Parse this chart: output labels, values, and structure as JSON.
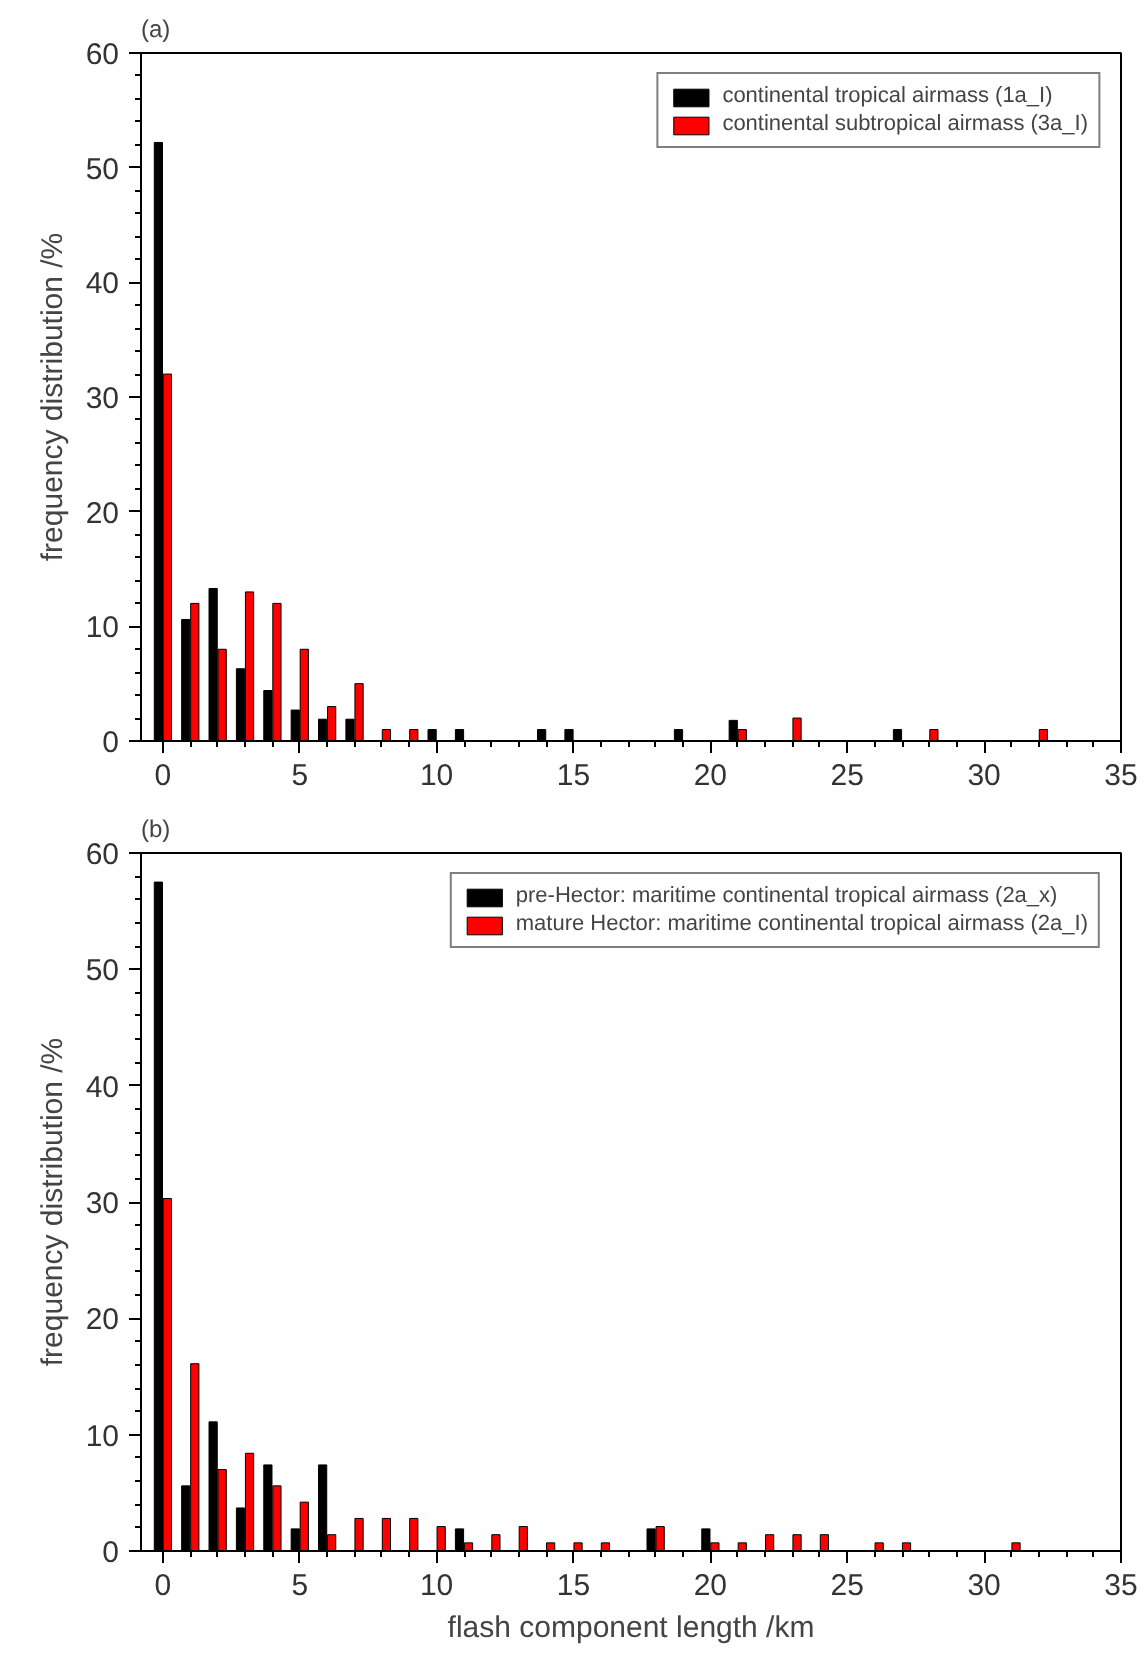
{
  "chart_data": [
    {
      "type": "bar",
      "title": "(a)",
      "ylabel": "frequency distribution /%",
      "x": [
        0,
        1,
        2,
        3,
        4,
        5,
        6,
        7,
        8,
        9,
        10,
        11,
        14,
        15,
        19,
        21,
        23,
        27,
        28,
        32
      ],
      "series": [
        {
          "name": "continental tropical airmass (1a_I)",
          "color": "#000000",
          "values": [
            52.2,
            10.6,
            13.3,
            6.3,
            4.4,
            2.7,
            1.9,
            1.9,
            null,
            null,
            1,
            1,
            1,
            1,
            1,
            1.8,
            null,
            1,
            null,
            null
          ]
        },
        {
          "name": "continental subtropical airmass (3a_I)",
          "color": "#ff0000",
          "values": [
            32,
            12,
            8,
            13,
            12,
            8,
            3,
            5,
            1,
            1,
            null,
            null,
            null,
            null,
            null,
            1,
            2,
            null,
            1,
            1
          ]
        }
      ],
      "xlim": [
        -0.8,
        35
      ],
      "ylim": [
        0,
        60
      ],
      "xticks": [
        0,
        5,
        10,
        15,
        20,
        25,
        30,
        35
      ],
      "yticks": [
        0,
        10,
        20,
        30,
        40,
        50,
        60
      ],
      "legend": "top right",
      "grid": false
    },
    {
      "type": "bar",
      "title": "(b)",
      "xlabel": "flash component length /km",
      "ylabel": "frequency distribution /%",
      "x": [
        0,
        1,
        2,
        3,
        4,
        5,
        6,
        7,
        8,
        9,
        10,
        11,
        12,
        13,
        14,
        15,
        16,
        18,
        20,
        21,
        22,
        23,
        24,
        26,
        27,
        31
      ],
      "series": [
        {
          "name": "pre-Hector: maritime continental tropical airmass (2a_x)",
          "color": "#000000",
          "values": [
            57.5,
            5.6,
            11.1,
            3.7,
            7.4,
            1.9,
            7.4,
            null,
            null,
            null,
            null,
            1.9,
            null,
            null,
            null,
            null,
            null,
            1.9,
            1.9,
            null,
            null,
            null,
            null,
            null,
            null,
            null
          ]
        },
        {
          "name": "mature Hector: maritime continental tropical airmass (2a_I)",
          "color": "#ff0000",
          "values": [
            30.3,
            16.1,
            7,
            8.4,
            5.6,
            4.2,
            1.4,
            2.8,
            2.8,
            2.8,
            2.1,
            0.7,
            1.4,
            2.1,
            0.7,
            0.7,
            0.7,
            2.1,
            0.7,
            0.7,
            1.4,
            1.4,
            1.4,
            0.7,
            0.7,
            0.7
          ]
        }
      ],
      "xlim": [
        -0.8,
        35
      ],
      "ylim": [
        0,
        60
      ],
      "xticks": [
        0,
        5,
        10,
        15,
        20,
        25,
        30,
        35
      ],
      "yticks": [
        0,
        10,
        20,
        30,
        40,
        50,
        60
      ],
      "legend": "top right",
      "grid": false
    }
  ]
}
